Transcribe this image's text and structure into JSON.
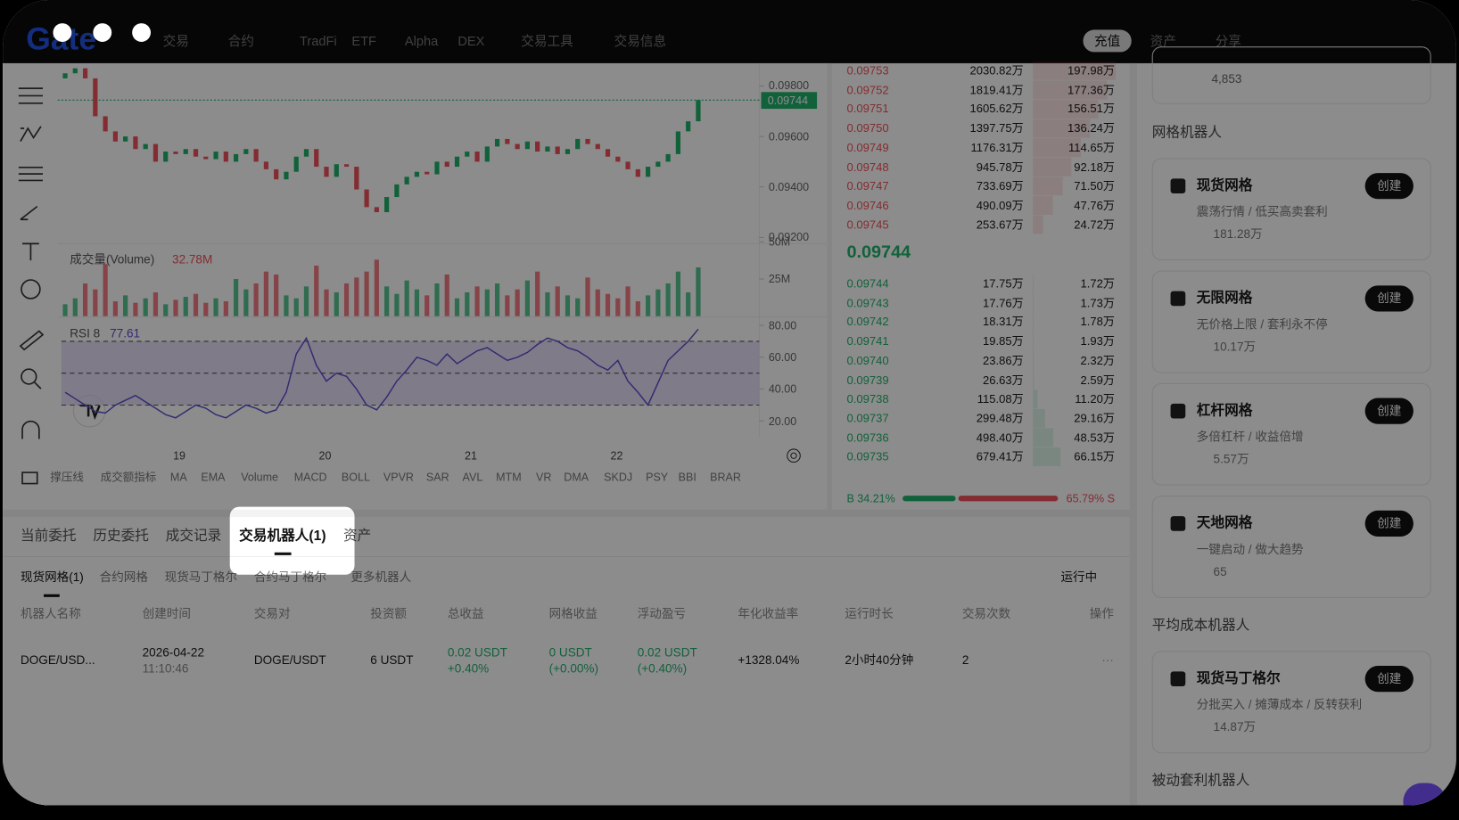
{
  "nav": {
    "logo": "Gate",
    "items": [
      "交易",
      "合约",
      "TradFi",
      "ETF",
      "Alpha",
      "DEX",
      "交易工具",
      "交易信息"
    ],
    "deposit": "充值",
    "assets": "资产",
    "share": "分享"
  },
  "chart": {
    "price_ticks": [
      {
        "value": 0.098,
        "label": "0.09800"
      },
      {
        "value": 0.096,
        "label": "0.09600"
      },
      {
        "value": 0.094,
        "label": "0.09400"
      },
      {
        "value": 0.092,
        "label": "0.09200"
      }
    ],
    "price_ylim": [
      0.0919,
      0.0989
    ],
    "last_price": 0.09744,
    "open": [
      0.0983,
      0.0985,
      0.0987,
      0.0983,
      0.0968,
      0.0962,
      0.0958,
      0.096,
      0.0955,
      0.0957,
      0.095,
      0.0954,
      0.0953,
      0.0955,
      0.0952,
      0.0951,
      0.0954,
      0.095,
      0.0953,
      0.0955,
      0.095,
      0.0947,
      0.0943,
      0.0946,
      0.0952,
      0.0955,
      0.0948,
      0.0944,
      0.0949,
      0.0948,
      0.0939,
      0.0932,
      0.093,
      0.0936,
      0.0941,
      0.0944,
      0.0946,
      0.0945,
      0.095,
      0.0948,
      0.0952,
      0.0954,
      0.095,
      0.0956,
      0.0959,
      0.0957,
      0.0955,
      0.0958,
      0.0954,
      0.0956,
      0.0953,
      0.0955,
      0.0959,
      0.0957,
      0.0955,
      0.0952,
      0.095,
      0.0947,
      0.0944,
      0.0948,
      0.095,
      0.0953,
      0.0962,
      0.0966
    ],
    "close": [
      0.0985,
      0.0987,
      0.0983,
      0.0968,
      0.0962,
      0.0958,
      0.096,
      0.0955,
      0.0957,
      0.095,
      0.0954,
      0.0953,
      0.0955,
      0.0952,
      0.0951,
      0.0954,
      0.095,
      0.0953,
      0.0955,
      0.095,
      0.0947,
      0.0943,
      0.0946,
      0.0952,
      0.0955,
      0.0948,
      0.0944,
      0.0949,
      0.0948,
      0.0939,
      0.0932,
      0.093,
      0.0936,
      0.0941,
      0.0944,
      0.0946,
      0.0945,
      0.095,
      0.0948,
      0.0952,
      0.0954,
      0.095,
      0.0956,
      0.0959,
      0.0957,
      0.0955,
      0.0958,
      0.0954,
      0.0956,
      0.0953,
      0.0955,
      0.0959,
      0.0957,
      0.0955,
      0.0952,
      0.095,
      0.0947,
      0.0944,
      0.0948,
      0.095,
      0.0953,
      0.0962,
      0.0966,
      0.09744
    ],
    "volume_label": "成交量(Volume)",
    "volume_value": "32.78M",
    "volume_ylim": [
      0,
      50
    ],
    "volume_ticks": [
      {
        "value": 50,
        "label": "50M"
      },
      {
        "value": 25,
        "label": "25M"
      }
    ],
    "volume": [
      8,
      12,
      22,
      18,
      35,
      10,
      14,
      9,
      12,
      16,
      8,
      11,
      13,
      15,
      9,
      12,
      10,
      25,
      18,
      22,
      30,
      28,
      14,
      12,
      20,
      34,
      18,
      16,
      22,
      26,
      30,
      38,
      20,
      15,
      24,
      18,
      14,
      22,
      28,
      12,
      16,
      20,
      18,
      22,
      14,
      18,
      24,
      30,
      16,
      20,
      14,
      12,
      26,
      18,
      15,
      12,
      20,
      10,
      14,
      18,
      22,
      30,
      16,
      32.78
    ],
    "rsi_label": "RSI 8",
    "rsi_value": "77.61",
    "rsi_ylim": [
      14,
      84
    ],
    "rsi_levels": [
      70,
      50,
      30
    ],
    "rsi_ticks": [
      {
        "value": 80,
        "label": "80.00"
      },
      {
        "value": 60,
        "label": "60.00"
      },
      {
        "value": 40,
        "label": "40.00"
      },
      {
        "value": 20,
        "label": "20.00"
      }
    ],
    "rsi": [
      38,
      34,
      30,
      26,
      25,
      30,
      33,
      36,
      32,
      28,
      24,
      22,
      26,
      30,
      28,
      24,
      22,
      26,
      30,
      28,
      25,
      27,
      38,
      62,
      72,
      55,
      45,
      50,
      48,
      40,
      30,
      27,
      35,
      45,
      52,
      60,
      58,
      55,
      62,
      56,
      60,
      64,
      66,
      62,
      58,
      60,
      63,
      68,
      72,
      70,
      66,
      64,
      60,
      55,
      52,
      58,
      45,
      38,
      30,
      44,
      58,
      64,
      70,
      77.61
    ],
    "dates": [
      "19",
      "20",
      "21",
      "22"
    ],
    "indicators": [
      "撑压线",
      "成交额指标",
      "MA",
      "EMA",
      "Volume",
      "MACD",
      "BOLL",
      "VPVR",
      "SAR",
      "AVL",
      "MTM",
      "VR",
      "DMA",
      "SKDJ",
      "PSY",
      "BBI",
      "BRAR"
    ]
  },
  "orderbook": {
    "asks": {
      "prices": [
        "0.09753",
        "0.09752",
        "0.09751",
        "0.09750",
        "0.09749",
        "0.09748",
        "0.09747",
        "0.09746",
        "0.09745"
      ],
      "amounts": [
        "2030.82万",
        "1819.41万",
        "1605.62万",
        "1397.75万",
        "1176.31万",
        "945.78万",
        "733.69万",
        "490.09万",
        "253.67万"
      ],
      "totals": [
        "197.98万",
        "177.36万",
        "156.51万",
        "136.24万",
        "114.65万",
        "92.18万",
        "71.50万",
        "47.76万",
        "24.72万"
      ]
    },
    "mid_price": "0.09744",
    "bids": {
      "prices": [
        "0.09744",
        "0.09743",
        "0.09742",
        "0.09741",
        "0.09740",
        "0.09739",
        "0.09738",
        "0.09737",
        "0.09736",
        "0.09735"
      ],
      "amounts": [
        "17.75万",
        "17.76万",
        "18.31万",
        "19.85万",
        "23.86万",
        "26.63万",
        "115.08万",
        "299.48万",
        "498.40万",
        "679.41万"
      ],
      "totals": [
        "1.72万",
        "1.73万",
        "1.78万",
        "1.93万",
        "2.32万",
        "2.59万",
        "11.20万",
        "29.16万",
        "48.53万",
        "66.15万"
      ]
    },
    "buy_ratio": "B 34.21%",
    "sell_ratio": "65.79% S"
  },
  "bottom": {
    "tabs": [
      "当前委托",
      "历史委托",
      "成交记录",
      "交易机器人(1)",
      "资产"
    ],
    "subtabs": [
      "现货网格(1)",
      "合约网格",
      "现货马丁格尔",
      "合约马丁格尔",
      "更多机器人"
    ],
    "status_filter": "运行中",
    "headers": [
      "机器人名称",
      "创建时间",
      "交易对",
      "投资额",
      "总收益",
      "网格收益",
      "浮动盈亏",
      "年化收益率",
      "运行时长",
      "交易次数",
      "操作"
    ],
    "row": {
      "name": "DOGE/USD...",
      "date": "2026-04-22",
      "time": "11:10:46",
      "pair": "DOGE/USDT",
      "investment": "6 USDT",
      "total_profit": "0.02 USDT",
      "total_profit_pct": "+0.40%",
      "grid_profit": "0 USDT",
      "grid_profit_pct": "(+0.00%)",
      "floating_pnl": "0.02 USDT",
      "floating_pnl_pct": "(+0.40%)",
      "apr": "+1328.04%",
      "duration": "2小时40分钟",
      "trades": "2",
      "action": "···"
    }
  },
  "robots": {
    "top_users": "4,853",
    "grid_title": "网格机器人",
    "grid": [
      {
        "name": "现货网格",
        "desc": "震荡行情 / 低买高卖套利",
        "users": "181.28万",
        "button": "创建"
      },
      {
        "name": "无限网格",
        "desc": "无价格上限 / 套利永不停",
        "users": "10.17万",
        "button": "创建"
      },
      {
        "name": "杠杆网格",
        "desc": "多倍杠杆 / 收益倍增",
        "users": "5.57万",
        "button": "创建"
      },
      {
        "name": "天地网格",
        "desc": "一键启动 / 做大趋势",
        "users": "65",
        "button": "创建"
      }
    ],
    "avg_title": "平均成本机器人",
    "avg": [
      {
        "name": "现货马丁格尔",
        "desc": "分批买入 / 摊薄成本 / 反转获利",
        "users": "14.87万",
        "button": "创建"
      }
    ],
    "passive_title": "被动套利机器人"
  }
}
